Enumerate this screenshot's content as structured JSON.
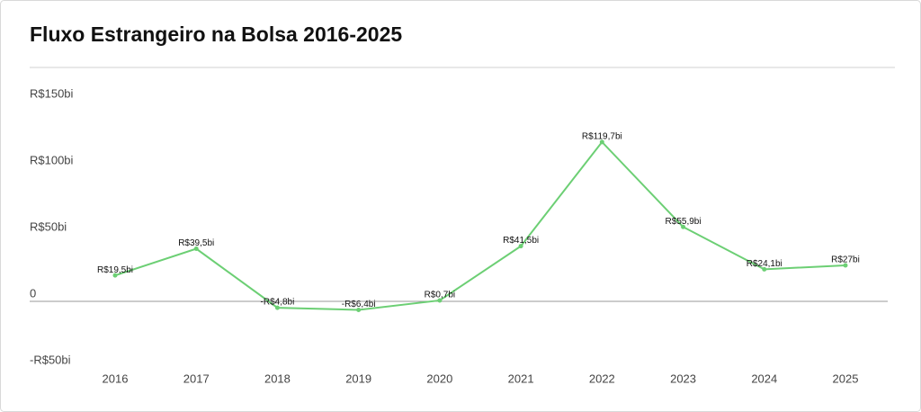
{
  "chart_data": {
    "type": "line",
    "title": "Fluxo Estrangeiro na Bolsa 2016-2025",
    "categories": [
      "2016",
      "2017",
      "2018",
      "2019",
      "2020",
      "2021",
      "2022",
      "2023",
      "2024",
      "2025"
    ],
    "values": [
      19.5,
      39.5,
      -4.8,
      -6.4,
      0.7,
      41.5,
      119.7,
      55.9,
      24.1,
      27
    ],
    "value_labels": [
      "R$19,5bi",
      "R$39,5bi",
      "-R$4,8bi",
      "-R$6,4bi",
      "R$0,7bi",
      "R$41,5bi",
      "R$119,7bi",
      "R$55,9bi",
      "R$24,1bi",
      "R$27bi"
    ],
    "color": "#6ccf74",
    "ylim": [
      -50,
      150
    ],
    "yticks": [
      {
        "value": -50,
        "label": "-R$50bi"
      },
      0,
      {
        "value": 50,
        "label": "R$50bi"
      },
      {
        "value": 100,
        "label": "R$100bi"
      },
      {
        "value": 150,
        "label": "R$150bi"
      }
    ]
  }
}
